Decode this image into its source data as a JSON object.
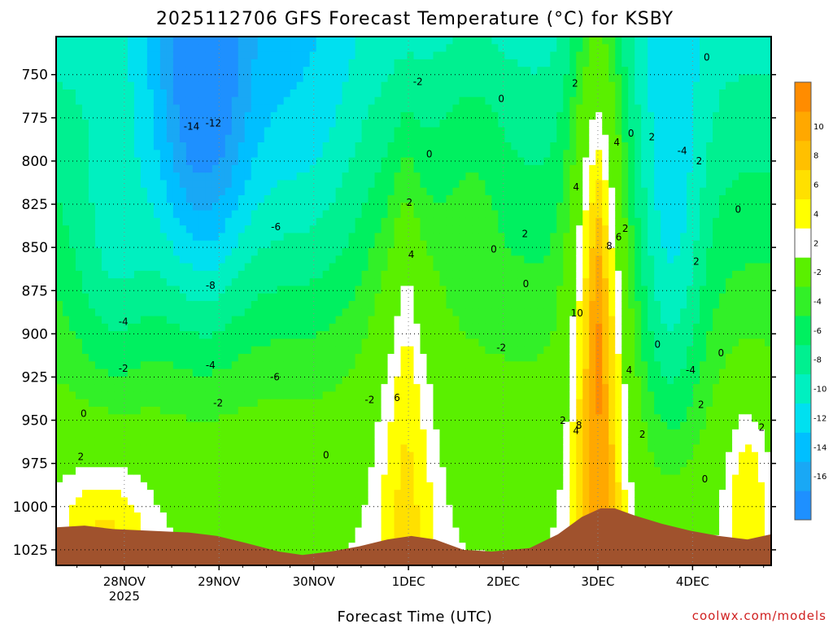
{
  "chart_data": {
    "type": "heatmap",
    "title": "2025112706 GFS Forecast Temperature (°C) for KSBY",
    "xlabel": "Forecast Time (UTC)",
    "ylabel": "",
    "credit": "coolwx.com/models",
    "x_ticks": [
      {
        "day": 0.72,
        "label": "28NOV",
        "sub": "2025"
      },
      {
        "day": 1.72,
        "label": "29NOV",
        "sub": ""
      },
      {
        "day": 2.72,
        "label": "30NOV",
        "sub": ""
      },
      {
        "day": 3.72,
        "label": "1DEC",
        "sub": ""
      },
      {
        "day": 4.72,
        "label": "2DEC",
        "sub": ""
      },
      {
        "day": 5.72,
        "label": "3DEC",
        "sub": ""
      },
      {
        "day": 6.72,
        "label": "4DEC",
        "sub": ""
      }
    ],
    "xlim": [
      0,
      7.55
    ],
    "y_ticks": [
      750,
      775,
      800,
      825,
      850,
      875,
      900,
      925,
      950,
      975,
      1000,
      1025
    ],
    "ylim": [
      1034,
      728
    ],
    "colorbar": {
      "levels": [
        -18,
        -16,
        -14,
        -12,
        -10,
        -8,
        -6,
        -4,
        -2,
        2,
        4,
        6,
        8,
        10,
        12
      ],
      "tick_labels": [
        "-16",
        "-14",
        "-12",
        "-10",
        "-8",
        "-6",
        "-4",
        "-2",
        "2",
        "4",
        "6",
        "8",
        "10"
      ],
      "colors": [
        "#1e90ff",
        "#19a8f5",
        "#00bfff",
        "#00e0f0",
        "#00f0c0",
        "#00f090",
        "#00f060",
        "#32f028",
        "#5af000",
        "#ffffff",
        "#ffff00",
        "#ffe000",
        "#ffc000",
        "#ffa800",
        "#ff8c00"
      ]
    },
    "contour_labels": [
      {
        "t": "-14",
        "x": 1.43,
        "p": 782
      },
      {
        "t": "-12",
        "x": 1.66,
        "p": 780
      },
      {
        "t": "-6",
        "x": 2.32,
        "p": 840
      },
      {
        "t": "-8",
        "x": 1.63,
        "p": 874
      },
      {
        "t": "-4",
        "x": 0.71,
        "p": 895
      },
      {
        "t": "-4",
        "x": 1.63,
        "p": 920
      },
      {
        "t": "-6",
        "x": 2.31,
        "p": 927
      },
      {
        "t": "-2",
        "x": 0.71,
        "p": 922
      },
      {
        "t": "-2",
        "x": 1.71,
        "p": 942
      },
      {
        "t": "-2",
        "x": 3.31,
        "p": 940
      },
      {
        "t": "-2",
        "x": 3.82,
        "p": 756
      },
      {
        "t": "0",
        "x": 3.94,
        "p": 798
      },
      {
        "t": "0",
        "x": 0.29,
        "p": 948
      },
      {
        "t": "2",
        "x": 0.26,
        "p": 973
      },
      {
        "t": "0",
        "x": 2.85,
        "p": 972
      },
      {
        "t": "2",
        "x": 3.73,
        "p": 826
      },
      {
        "t": "4",
        "x": 3.75,
        "p": 856
      },
      {
        "t": "6",
        "x": 3.6,
        "p": 939
      },
      {
        "t": "0",
        "x": 4.7,
        "p": 766
      },
      {
        "t": "0",
        "x": 4.62,
        "p": 853
      },
      {
        "t": "0",
        "x": 4.96,
        "p": 873
      },
      {
        "t": "2",
        "x": 4.95,
        "p": 844
      },
      {
        "t": "-2",
        "x": 4.7,
        "p": 910
      },
      {
        "t": "2",
        "x": 5.48,
        "p": 757
      },
      {
        "t": "4",
        "x": 5.49,
        "p": 817
      },
      {
        "t": "2",
        "x": 5.35,
        "p": 952
      },
      {
        "t": "4",
        "x": 5.49,
        "p": 958
      },
      {
        "t": "8",
        "x": 5.52,
        "p": 955
      },
      {
        "t": "10",
        "x": 5.5,
        "p": 890
      },
      {
        "t": "8",
        "x": 5.84,
        "p": 851
      },
      {
        "t": "6",
        "x": 5.94,
        "p": 846
      },
      {
        "t": "2",
        "x": 6.01,
        "p": 841
      },
      {
        "t": "4",
        "x": 5.92,
        "p": 791
      },
      {
        "t": "0",
        "x": 6.07,
        "p": 786
      },
      {
        "t": "2",
        "x": 6.29,
        "p": 788
      },
      {
        "t": "-4",
        "x": 6.61,
        "p": 796
      },
      {
        "t": "2",
        "x": 6.79,
        "p": 802
      },
      {
        "t": "0",
        "x": 6.87,
        "p": 742
      },
      {
        "t": "0",
        "x": 7.2,
        "p": 830
      },
      {
        "t": "2",
        "x": 6.76,
        "p": 860
      },
      {
        "t": "0",
        "x": 6.35,
        "p": 908
      },
      {
        "t": "4",
        "x": 6.05,
        "p": 923
      },
      {
        "t": "2",
        "x": 6.19,
        "p": 960
      },
      {
        "t": "-4",
        "x": 6.7,
        "p": 923
      },
      {
        "t": "2",
        "x": 6.81,
        "p": 943
      },
      {
        "t": "0",
        "x": 7.02,
        "p": 913
      },
      {
        "t": "0",
        "x": 6.85,
        "p": 986
      },
      {
        "t": "2",
        "x": 7.45,
        "p": 956
      }
    ]
  }
}
